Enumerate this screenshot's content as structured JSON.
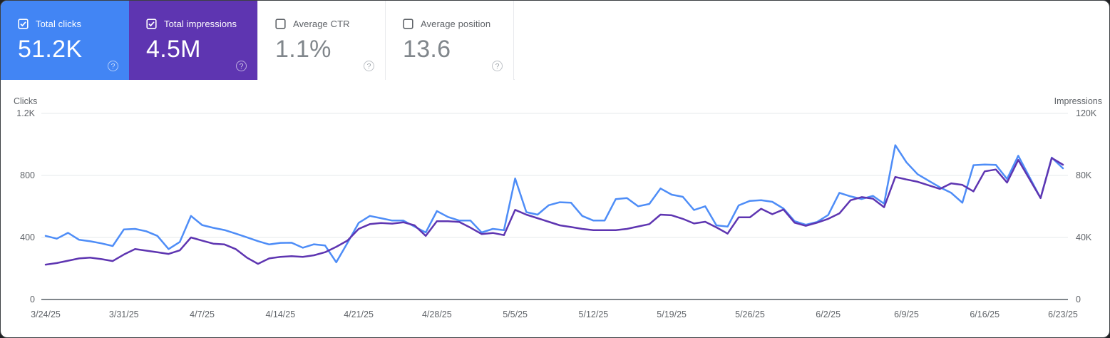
{
  "cards": [
    {
      "label": "Total clicks",
      "value": "51.2K",
      "selected": true,
      "color": "#4285f4",
      "text_color": "#ffffff"
    },
    {
      "label": "Total impressions",
      "value": "4.5M",
      "selected": true,
      "color": "#5e35b1",
      "text_color": "#ffffff"
    },
    {
      "label": "Average CTR",
      "value": "1.1%",
      "selected": false,
      "color": "#ffffff",
      "text_color": "#80868b"
    },
    {
      "label": "Average position",
      "value": "13.6",
      "selected": false,
      "color": "#ffffff",
      "text_color": "#80868b"
    }
  ],
  "help_icon_glyph": "?",
  "chart_data": {
    "type": "line",
    "title": "",
    "x_label_every_days": 7,
    "x_labels": [
      "3/24/25",
      "3/31/25",
      "4/7/25",
      "4/14/25",
      "4/21/25",
      "4/28/25",
      "5/5/25",
      "5/12/25",
      "5/19/25",
      "5/26/25",
      "6/2/25",
      "6/9/25",
      "6/16/25",
      "6/23/25"
    ],
    "left_axis": {
      "title": "Clicks",
      "ticks": [
        "1.2K",
        "800",
        "400",
        "0"
      ],
      "tick_values": [
        1200,
        800,
        400,
        0
      ],
      "max": 1200
    },
    "right_axis": {
      "title": "Impressions",
      "ticks": [
        "120K",
        "80K",
        "40K",
        "0"
      ],
      "tick_values": [
        120,
        80,
        40,
        0
      ],
      "max": 120
    },
    "grid": "horizontal",
    "legend_position": "none",
    "series": [
      {
        "name": "Clicks",
        "axis": "left",
        "color": "#4e8df7",
        "values": [
          410,
          392,
          430,
          385,
          375,
          362,
          345,
          452,
          455,
          440,
          410,
          325,
          371,
          539,
          480,
          462,
          448,
          425,
          401,
          376,
          355,
          365,
          366,
          334,
          356,
          348,
          240,
          365,
          494,
          539,
          524,
          509,
          509,
          470,
          432,
          570,
          532,
          509,
          509,
          432,
          455,
          447,
          780,
          563,
          547,
          608,
          627,
          624,
          539,
          509,
          509,
          647,
          654,
          601,
          616,
          716,
          676,
          662,
          577,
          601,
          478,
          470,
          607,
          636,
          640,
          630,
          586,
          505,
          482,
          500,
          545,
          688,
          665,
          648,
          668,
          618,
          995,
          884,
          808,
          765,
          723,
          688,
          624,
          866,
          870,
          868,
          777,
          927,
          790,
          654,
          915,
          846
        ]
      },
      {
        "name": "Impressions (thousands)",
        "axis": "right",
        "color": "#5e35b1",
        "values": [
          22.5,
          23.5,
          25,
          26.5,
          27,
          26,
          24.8,
          29,
          32.5,
          31.5,
          30.5,
          29.4,
          31.7,
          40,
          38,
          36,
          35.5,
          32.5,
          27,
          23,
          26.5,
          27.5,
          27.9,
          27.5,
          28.5,
          30.5,
          34,
          38,
          45.5,
          48.6,
          49.3,
          48.9,
          49.8,
          47.8,
          41,
          50.5,
          50.5,
          50,
          46.3,
          42.2,
          42.9,
          41.5,
          57.8,
          54.7,
          52.4,
          50.1,
          47.8,
          46.7,
          45.5,
          44.7,
          44.7,
          44.7,
          45.5,
          47.1,
          48.6,
          54.7,
          54.3,
          52,
          49,
          50.1,
          46.5,
          42.5,
          53,
          53,
          58.5,
          55,
          58,
          49.5,
          47.5,
          49.5,
          52,
          55.5,
          64,
          66,
          65,
          59.5,
          79,
          77.4,
          75.9,
          73.6,
          71.3,
          74.9,
          73.9,
          69.7,
          82.6,
          83.8,
          75.4,
          90,
          77.7,
          65.4,
          91.2,
          86.9
        ]
      }
    ],
    "colors": {
      "grid_line": "#ebedef",
      "zero_axis": "#80868b",
      "tick_text": "#5f6368"
    }
  }
}
